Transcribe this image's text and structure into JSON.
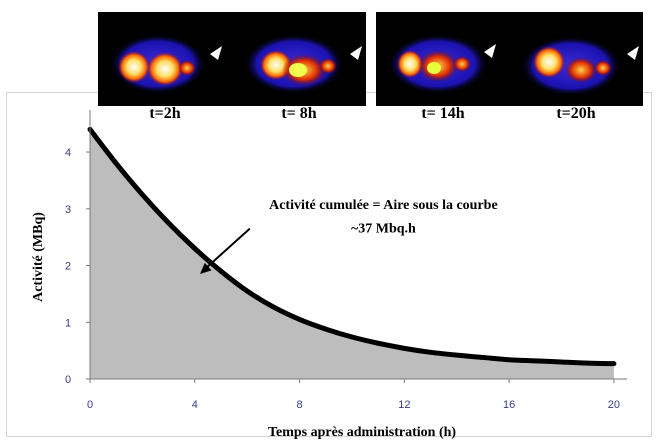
{
  "scans": [
    {
      "label": "t=2h"
    },
    {
      "label": "t= 8h"
    },
    {
      "label": "t= 14h"
    },
    {
      "label": "t=20h"
    }
  ],
  "chart_data": {
    "type": "area",
    "xlabel": "Temps après administration (h)",
    "ylabel": "Activité (MBq)",
    "xlim": [
      0,
      20.5
    ],
    "ylim": [
      0,
      4.6
    ],
    "xticks": [
      0,
      4,
      8,
      12,
      16,
      20
    ],
    "yticks": [
      0,
      1,
      2,
      3,
      4
    ],
    "grid": false,
    "series": [
      {
        "x": [
          0,
          1,
          2,
          3,
          4,
          5,
          6,
          7,
          8,
          9,
          10,
          11,
          12,
          13,
          14,
          15,
          16,
          17,
          18,
          19,
          20
        ],
        "values": [
          4.4,
          3.8,
          3.25,
          2.75,
          2.3,
          1.9,
          1.55,
          1.27,
          1.05,
          0.88,
          0.74,
          0.63,
          0.54,
          0.47,
          0.42,
          0.38,
          0.34,
          0.32,
          0.3,
          0.28,
          0.27
        ]
      }
    ],
    "colors": {
      "curve": "#000000",
      "fill": "#bdbdbd",
      "tick_labels": "#3a3a8c"
    },
    "annotations": [
      {
        "text": "Activité cumulée = Aire sous la courbe",
        "x": 11.2,
        "y": 3.0
      },
      {
        "text": "~37 Mbq.h",
        "x": 11.2,
        "y": 2.58
      }
    ],
    "arrow": {
      "from": [
        6.1,
        2.65
      ],
      "to": [
        4.2,
        1.85
      ]
    }
  }
}
